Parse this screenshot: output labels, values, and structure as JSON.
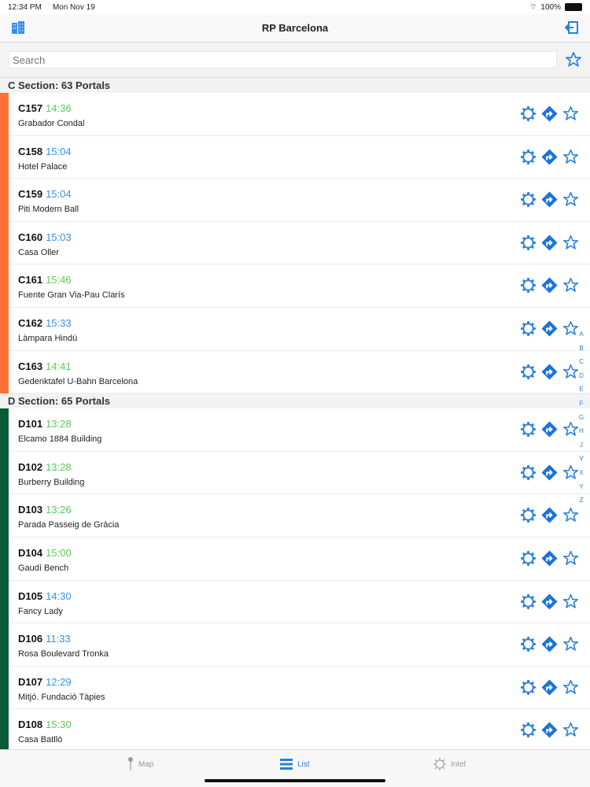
{
  "status": {
    "time": "12:34 PM",
    "date": "Mon Nov 19",
    "battery": "100%"
  },
  "nav": {
    "title": "RP Barcelona"
  },
  "search": {
    "placeholder": "Search",
    "value": ""
  },
  "colors": {
    "accent": "#2a7fd8",
    "green": "#5cc95c",
    "blue": "#3b8fdf",
    "c_section": "#ff7036",
    "d_section": "#0a5c36"
  },
  "sections": [
    {
      "title": "C Section: 63 Portals",
      "color": "#ff7036",
      "rows": [
        {
          "code": "C157",
          "time": "14:36",
          "time_color": "green",
          "name": "Grabador Condal"
        },
        {
          "code": "C158",
          "time": "15:04",
          "time_color": "blue",
          "name": "Hotel Palace"
        },
        {
          "code": "C159",
          "time": "15:04",
          "time_color": "blue",
          "name": "Piti Modern Ball"
        },
        {
          "code": "C160",
          "time": "15:03",
          "time_color": "blue",
          "name": "Casa Oller"
        },
        {
          "code": "C161",
          "time": "15:46",
          "time_color": "green",
          "name": "Fuente Gran Via-Pau Clarís"
        },
        {
          "code": "C162",
          "time": "15:33",
          "time_color": "blue",
          "name": "Làmpara Hindú"
        },
        {
          "code": "C163",
          "time": "14:41",
          "time_color": "green",
          "name": "Gedenktafel U-Bahn Barcelona"
        }
      ]
    },
    {
      "title": "D Section: 65 Portals",
      "color": "#0a5c36",
      "rows": [
        {
          "code": "D101",
          "time": "13:28",
          "time_color": "green",
          "name": "Elcamo 1884 Building"
        },
        {
          "code": "D102",
          "time": "13:28",
          "time_color": "green",
          "name": "Burberry Building"
        },
        {
          "code": "D103",
          "time": "13:26",
          "time_color": "green",
          "name": "Parada Passeig de Gràcia"
        },
        {
          "code": "D104",
          "time": "15:00",
          "time_color": "green",
          "name": "Gaudí Bench"
        },
        {
          "code": "D105",
          "time": "14:30",
          "time_color": "blue",
          "name": "Fancy Lady"
        },
        {
          "code": "D106",
          "time": "11:33",
          "time_color": "blue",
          "name": "Rosa Boulevard Tronka"
        },
        {
          "code": "D107",
          "time": "12:29",
          "time_color": "blue",
          "name": "Mitjó. Fundació Tàpies"
        },
        {
          "code": "D108",
          "time": "15:30",
          "time_color": "green",
          "name": "Casa Batlló"
        }
      ]
    }
  ],
  "index_letters": [
    "A",
    "B",
    "C",
    "D",
    "E",
    "F",
    "G",
    "H",
    "J",
    "V",
    "X",
    "Y",
    "Z"
  ],
  "tabs": [
    {
      "label": "Map",
      "icon": "pin-icon"
    },
    {
      "label": "List",
      "icon": "list-icon",
      "active": true
    },
    {
      "label": "Intel",
      "icon": "gear-icon"
    }
  ]
}
